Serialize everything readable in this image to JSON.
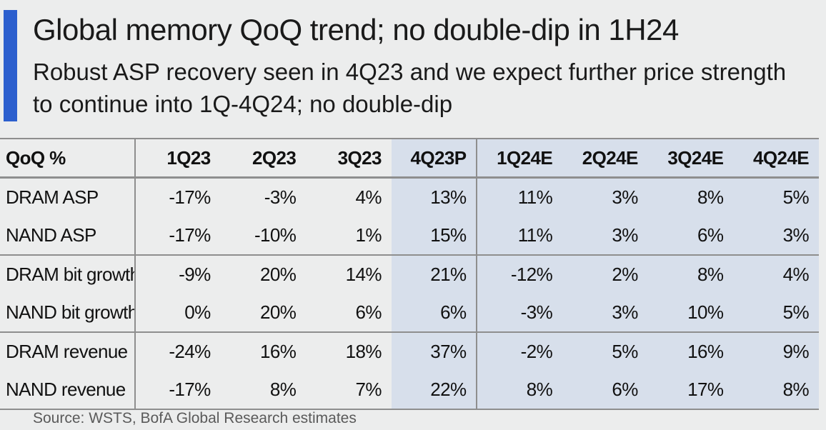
{
  "header": {
    "title": "Global memory QoQ trend; no double-dip in 1H24",
    "subtitle": "Robust ASP recovery seen in 4Q23 and we expect further price strength to continue into 1Q-4Q24; no double-dip"
  },
  "table": {
    "columns": [
      "QoQ %",
      "1Q23",
      "2Q23",
      "3Q23",
      "4Q23P",
      "1Q24E",
      "2Q24E",
      "3Q24E",
      "4Q24E"
    ],
    "rows": [
      {
        "label": "DRAM ASP",
        "values": [
          "-17%",
          "-3%",
          "4%",
          "13%",
          "11%",
          "3%",
          "8%",
          "5%"
        ]
      },
      {
        "label": "NAND ASP",
        "values": [
          "-17%",
          "-10%",
          "1%",
          "15%",
          "11%",
          "3%",
          "6%",
          "3%"
        ]
      },
      {
        "label": "DRAM bit growth",
        "values": [
          "-9%",
          "20%",
          "14%",
          "21%",
          "-12%",
          "2%",
          "8%",
          "4%"
        ]
      },
      {
        "label": "NAND bit growth",
        "values": [
          "0%",
          "20%",
          "6%",
          "6%",
          "-3%",
          "3%",
          "10%",
          "5%"
        ]
      },
      {
        "label": "DRAM revenue",
        "values": [
          "-24%",
          "16%",
          "18%",
          "37%",
          "-2%",
          "5%",
          "16%",
          "9%"
        ]
      },
      {
        "label": "NAND revenue",
        "values": [
          "-17%",
          "8%",
          "7%",
          "22%",
          "8%",
          "6%",
          "17%",
          "8%"
        ]
      }
    ]
  },
  "source": "Source: WSTS, BofA Global Research estimates",
  "colors": {
    "accent": "#2c5fce",
    "highlight": "#d7dfeb",
    "background": "#eceded"
  }
}
